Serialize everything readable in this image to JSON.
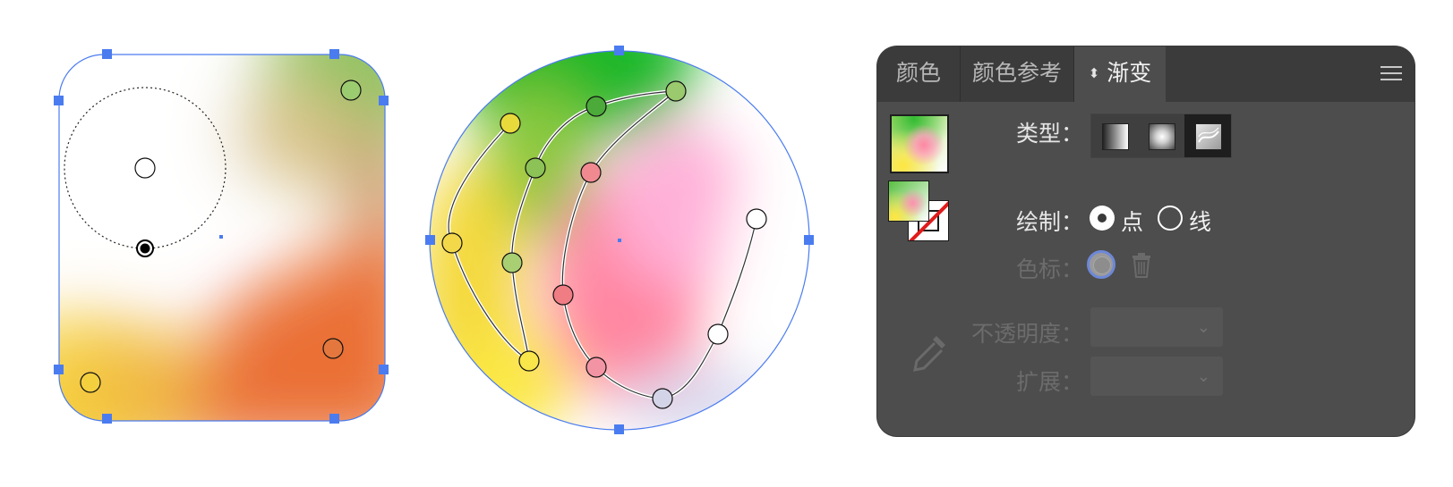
{
  "panel": {
    "tabs": [
      {
        "label": "颜色"
      },
      {
        "label": "颜色参考"
      },
      {
        "label": "渐变",
        "arrows": "⬍"
      }
    ],
    "type_label": "类型：",
    "draw_label": "绘制：",
    "draw_options": [
      "点",
      "线"
    ],
    "stop_label": "色标：",
    "opacity_label": "不透明度：",
    "extend_label": "扩展：",
    "chevron": "⌄"
  },
  "colors": {
    "panel_bg": "#4d4d4d",
    "tabbar_bg": "#3b3b3b",
    "selection": "#4a7cf0"
  },
  "icons": {
    "type_buttons": [
      "linear-gradient-icon",
      "radial-gradient-icon",
      "freeform-gradient-icon"
    ]
  }
}
